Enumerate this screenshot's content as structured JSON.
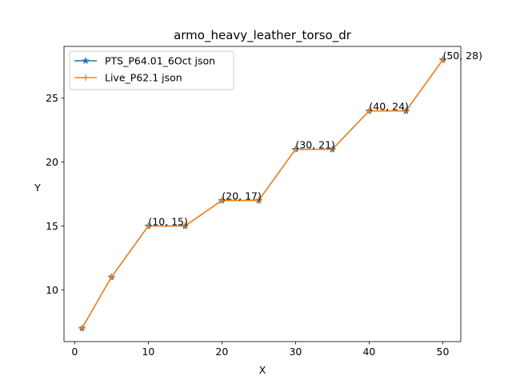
{
  "chart_data": {
    "type": "line",
    "title": "armo_heavy_leather_torso_dr",
    "xlabel": "X",
    "ylabel": "Y",
    "xlim": [
      -1.45,
      52.45
    ],
    "ylim": [
      5.95,
      29.05
    ],
    "xticks": [
      0,
      10,
      20,
      30,
      40,
      50
    ],
    "yticks": [
      10,
      15,
      20,
      25
    ],
    "grid": false,
    "legend_position": "top-left",
    "series": [
      {
        "name": "PTS_P64.01_6Oct json",
        "color": "#1f77b4",
        "marker": "star",
        "x": [
          1,
          5,
          10,
          15,
          20,
          25,
          30,
          35,
          40,
          45,
          50
        ],
        "y": [
          7,
          11,
          15,
          15,
          17,
          17,
          21,
          21,
          24,
          24,
          28
        ]
      },
      {
        "name": "Live_P62.1 json",
        "color": "#ff7f0e",
        "marker": "plus",
        "x": [
          1,
          5,
          10,
          15,
          20,
          25,
          30,
          35,
          40,
          45,
          50
        ],
        "y": [
          7,
          11,
          15,
          15,
          17,
          17,
          21,
          21,
          24,
          24,
          28
        ]
      }
    ],
    "annotations": [
      {
        "x": 10,
        "y": 15,
        "text": "(10, 15)"
      },
      {
        "x": 20,
        "y": 17,
        "text": "(20, 17)"
      },
      {
        "x": 30,
        "y": 21,
        "text": "(30, 21)"
      },
      {
        "x": 40,
        "y": 24,
        "text": "(40, 24)"
      },
      {
        "x": 50,
        "y": 28,
        "text": "(50, 28)"
      }
    ]
  }
}
